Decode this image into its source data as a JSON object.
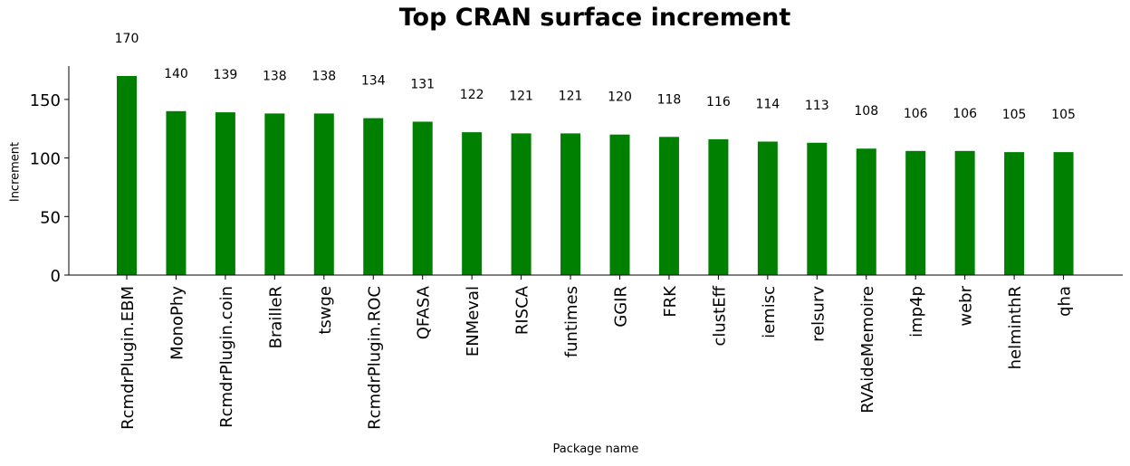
{
  "chart_data": {
    "type": "bar",
    "title": "Top CRAN surface increment",
    "xlabel": "Package name",
    "ylabel": "Increment",
    "categories": [
      "RcmdrPlugin.EBM",
      "MonoPhy",
      "RcmdrPlugin.coin",
      "BrailleR",
      "tswge",
      "RcmdrPlugin.ROC",
      "QFASA",
      "ENMeval",
      "RISCA",
      "funtimes",
      "GGIR",
      "FRK",
      "clustEff",
      "iemisc",
      "relsurv",
      "RVAideMemoire",
      "imp4p",
      "webr",
      "helminthR",
      "qha"
    ],
    "values": [
      170,
      140,
      139,
      138,
      138,
      134,
      131,
      122,
      121,
      121,
      120,
      118,
      116,
      114,
      113,
      108,
      106,
      106,
      105,
      105
    ],
    "data_labels": [
      "170",
      "140",
      "139",
      "138",
      "138",
      "134",
      "131",
      "122",
      "121",
      "121",
      "120",
      "118",
      "116",
      "114",
      "113",
      "108",
      "106",
      "106",
      "105",
      "105"
    ],
    "yticks": [
      0,
      50,
      100,
      150
    ],
    "ylim": [
      0,
      178.5
    ],
    "grid": false,
    "legend": "none",
    "bar_color": "#008000"
  }
}
